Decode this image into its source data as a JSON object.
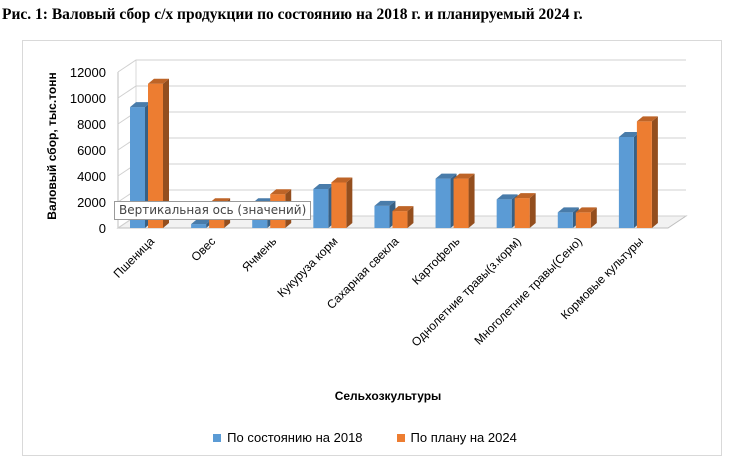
{
  "chart_data": {
    "type": "bar",
    "title": "Рис. 1: Валовый сбор с/х продукции по состоянию на 2018 г. и планируемый 2024 г.",
    "xlabel": "Сельхозкультуры",
    "ylabel": "Валовый сбор, тыс.тонн",
    "ylim": [
      0,
      12000
    ],
    "yticks": [
      0,
      2000,
      4000,
      6000,
      8000,
      10000,
      12000
    ],
    "grid": true,
    "legend_position": "bottom",
    "categories": [
      "Пшеница",
      "Овес",
      "Ячмень",
      "Кукуруза корм",
      "Сахарная свекла",
      "Картофель",
      "Однолетние травы(з.корм)",
      "Многолетние травы(Сено)",
      "Кормовые культуры"
    ],
    "series": [
      {
        "name": "По состоянию на 2018",
        "color": "#5b9bd5",
        "values": [
          9300,
          300,
          1900,
          3000,
          1700,
          3800,
          2200,
          1200,
          7000
        ]
      },
      {
        "name": "По плану на 2024",
        "color": "#ed7d31",
        "values": [
          11100,
          1900,
          2600,
          3500,
          1300,
          3800,
          2300,
          1200,
          8200
        ]
      }
    ]
  },
  "tooltip": {
    "text": "Вертикальная ось (значений)"
  }
}
